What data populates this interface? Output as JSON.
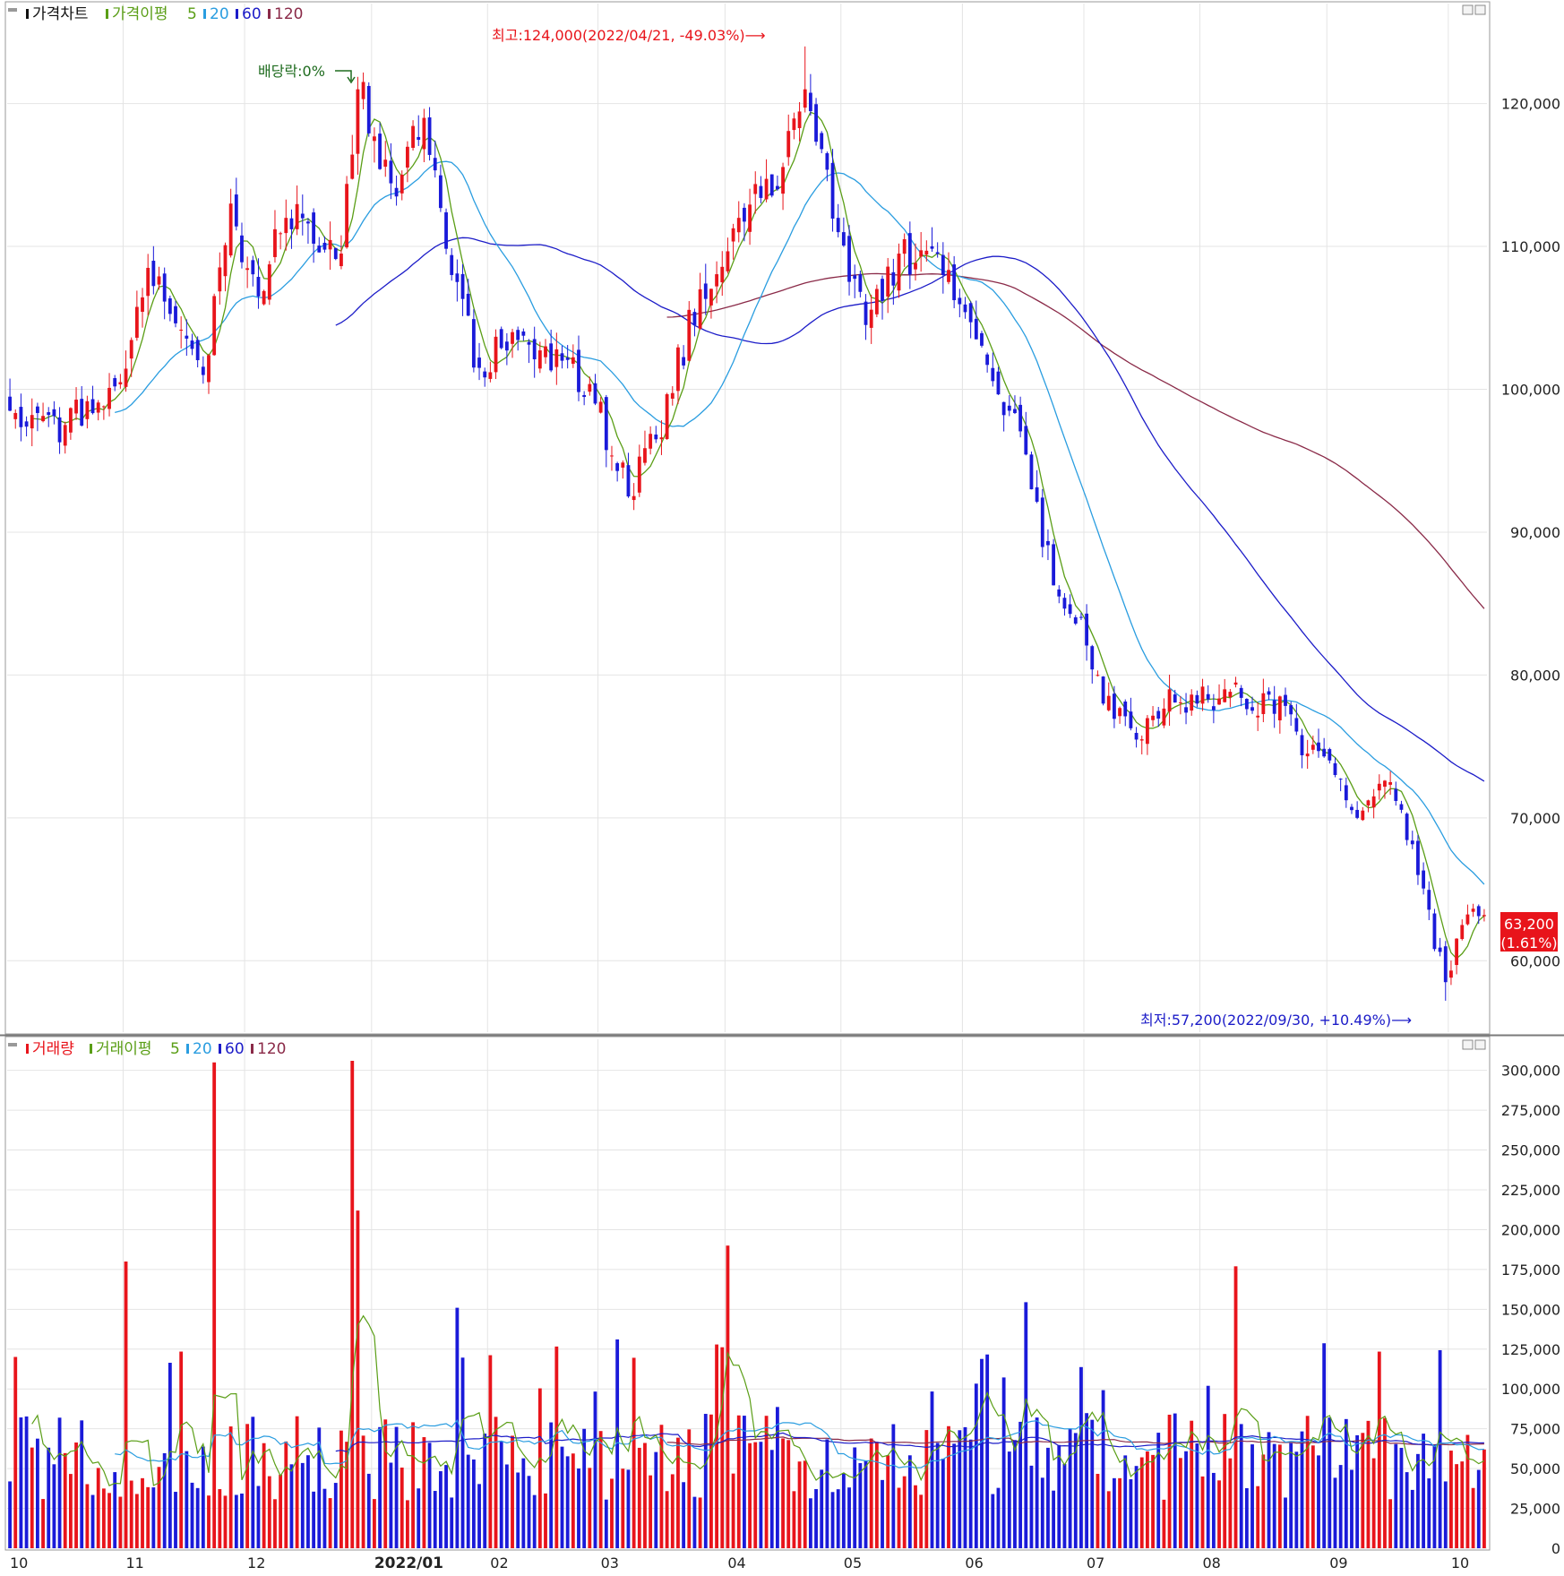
{
  "colors": {
    "up": "#e8141b",
    "down": "#1a1ad9",
    "ma5": "#5a9e16",
    "ma20": "#2a9de0",
    "ma60": "#1c1cc8",
    "ma120": "#8a2a48",
    "grid": "#e4e4e4",
    "axis_text": "#222222",
    "price_tag_bg": "#e8141b"
  },
  "price_panel": {
    "legend": {
      "main": "가격차트",
      "ma_label": "가격이평",
      "periods": [
        "5",
        "20",
        "60",
        "120"
      ]
    },
    "annotations": {
      "high": "최고:124,000(2022/04/21, -49.03%)⟶",
      "low": "최저:57,200(2022/09/30, +10.49%)⟶",
      "dividend": "배당락:0%"
    },
    "current_price": "63,200",
    "current_change": "(1.61%)"
  },
  "volume_panel": {
    "legend": {
      "main": "거래량",
      "ma_label": "거래이평",
      "periods": [
        "5",
        "20",
        "60",
        "120"
      ]
    }
  },
  "x_axis_labels": [
    "10",
    "11",
    "12",
    "2022/01",
    "02",
    "03",
    "04",
    "05",
    "06",
    "07",
    "08",
    "09",
    "10"
  ],
  "chart_data": [
    {
      "type": "candlestick",
      "title": "가격차트",
      "ylim": [
        55000,
        127000
      ],
      "y_ticks": [
        "60,000",
        "70,000",
        "80,000",
        "90,000",
        "100,000",
        "110,000",
        "120,000"
      ],
      "y_tick_values": [
        60000,
        70000,
        80000,
        90000,
        100000,
        110000,
        120000
      ],
      "month_boundaries": [
        "2021/11",
        "2021/12",
        "2022/01",
        "2022/02",
        "2022/03",
        "2022/04",
        "2022/05",
        "2022/06",
        "2022/07",
        "2022/08",
        "2022/09",
        "2022/10"
      ],
      "high": {
        "date": "2022/04/21",
        "value": 124000
      },
      "low": {
        "date": "2022/09/30",
        "value": 57200
      },
      "last_close": 63200,
      "price_anchors": [
        {
          "date": "2021/10/01",
          "close": 98500
        },
        {
          "date": "2021/10/15",
          "close": 97500
        },
        {
          "date": "2021/10/29",
          "close": 100500
        },
        {
          "date": "2021/11/05",
          "close": 108500
        },
        {
          "date": "2021/11/19",
          "close": 101000
        },
        {
          "date": "2021/11/26",
          "close": 113000
        },
        {
          "date": "2021/12/03",
          "close": 106500
        },
        {
          "date": "2021/12/10",
          "close": 112000
        },
        {
          "date": "2021/12/24",
          "close": 109500
        },
        {
          "date": "2021/12/29",
          "close": 121000
        },
        {
          "date": "2022/01/07",
          "close": 113500
        },
        {
          "date": "2022/01/14",
          "close": 119000
        },
        {
          "date": "2022/01/21",
          "close": 108000
        },
        {
          "date": "2022/01/28",
          "close": 101500
        },
        {
          "date": "2022/02/07",
          "close": 104000
        },
        {
          "date": "2022/02/18",
          "close": 102000
        },
        {
          "date": "2022/02/28",
          "close": 99000
        },
        {
          "date": "2022/03/08",
          "close": 92500
        },
        {
          "date": "2022/03/15",
          "close": 96500
        },
        {
          "date": "2022/03/25",
          "close": 107000
        },
        {
          "date": "2022/04/05",
          "close": 112000
        },
        {
          "date": "2022/04/14",
          "close": 114000
        },
        {
          "date": "2022/04/21",
          "close": 121000
        },
        {
          "date": "2022/04/29",
          "close": 111000
        },
        {
          "date": "2022/05/06",
          "close": 104500
        },
        {
          "date": "2022/05/16",
          "close": 109500
        },
        {
          "date": "2022/05/26",
          "close": 108000
        },
        {
          "date": "2022/06/03",
          "close": 103500
        },
        {
          "date": "2022/06/13",
          "close": 98500
        },
        {
          "date": "2022/06/17",
          "close": 93000
        },
        {
          "date": "2022/06/24",
          "close": 85500
        },
        {
          "date": "2022/06/30",
          "close": 84000
        },
        {
          "date": "2022/07/06",
          "close": 78000
        },
        {
          "date": "2022/07/15",
          "close": 75500
        },
        {
          "date": "2022/07/22",
          "close": 79000
        },
        {
          "date": "2022/07/29",
          "close": 78000
        },
        {
          "date": "2022/08/05",
          "close": 79000
        },
        {
          "date": "2022/08/12",
          "close": 77500
        },
        {
          "date": "2022/08/19",
          "close": 78500
        },
        {
          "date": "2022/08/26",
          "close": 74500
        },
        {
          "date": "2022/09/02",
          "close": 73000
        },
        {
          "date": "2022/09/08",
          "close": 70000
        },
        {
          "date": "2022/09/16",
          "close": 72500
        },
        {
          "date": "2022/09/23",
          "close": 66000
        },
        {
          "date": "2022/09/30",
          "close": 58500
        },
        {
          "date": "2022/10/05",
          "close": 62500
        },
        {
          "date": "2022/10/11",
          "close": 63200
        }
      ]
    },
    {
      "type": "bar",
      "title": "거래량",
      "ylim": [
        0,
        315000
      ],
      "y_ticks": [
        "0",
        "25,000",
        "50,000",
        "75,000",
        "100,000",
        "125,000",
        "150,000",
        "175,000",
        "200,000",
        "225,000",
        "250,000",
        "275,000",
        "300,000"
      ],
      "y_tick_values": [
        0,
        25000,
        50000,
        75000,
        100000,
        125000,
        150000,
        175000,
        200000,
        225000,
        250000,
        275000,
        300000
      ],
      "peaks": [
        {
          "date": "2021/11/23",
          "volume": 305000
        },
        {
          "date": "2021/12/28",
          "volume": 306000
        },
        {
          "date": "2021/12/29",
          "volume": 212000
        },
        {
          "date": "2022/04/01",
          "volume": 190000
        },
        {
          "date": "2022/08/09",
          "volume": 177000
        },
        {
          "date": "2021/11/01",
          "volume": 180000
        }
      ],
      "last_volume": 62000
    }
  ]
}
